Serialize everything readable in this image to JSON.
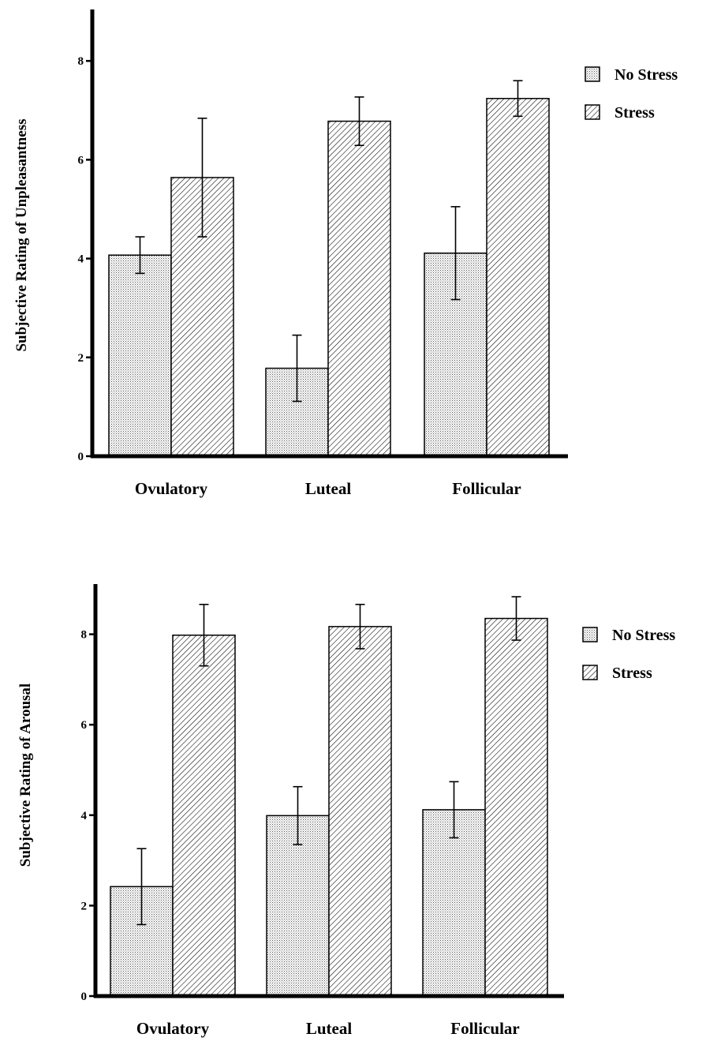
{
  "chart_data": [
    {
      "type": "bar",
      "title": "",
      "xlabel": "",
      "ylabel": "Subjective Rating of Unpleasantness",
      "categories": [
        "Ovulatory",
        "Luteal",
        "Follicular"
      ],
      "ylim": [
        0,
        9
      ],
      "yticks": [
        "0",
        "2",
        "4",
        "6",
        "8"
      ],
      "error_bars": true,
      "legend": "top-right",
      "series": [
        {
          "name": "No Stress",
          "pattern": "dots",
          "values": [
            4.07,
            1.78,
            4.11
          ],
          "errors": [
            0.37,
            0.67,
            0.94
          ]
        },
        {
          "name": "Stress",
          "pattern": "diagonal-hatch",
          "values": [
            5.64,
            6.78,
            7.24
          ],
          "errors": [
            1.2,
            0.49,
            0.36
          ]
        }
      ]
    },
    {
      "type": "bar",
      "title": "",
      "xlabel": "",
      "ylabel": "Subjective Rating of Arousal",
      "categories": [
        "Ovulatory",
        "Luteal",
        "Follicular"
      ],
      "ylim": [
        0,
        9
      ],
      "yticks": [
        "0",
        "2",
        "4",
        "6",
        "8"
      ],
      "error_bars": true,
      "legend": "top-right",
      "series": [
        {
          "name": "No Stress",
          "pattern": "dots",
          "values": [
            2.42,
            3.99,
            4.12
          ],
          "errors": [
            0.84,
            0.64,
            0.62
          ]
        },
        {
          "name": "Stress",
          "pattern": "diagonal-hatch",
          "values": [
            7.98,
            8.17,
            8.35
          ],
          "errors": [
            0.68,
            0.49,
            0.48
          ]
        }
      ]
    }
  ]
}
